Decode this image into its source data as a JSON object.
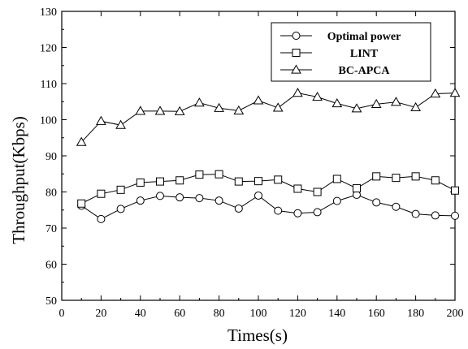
{
  "chart_data": {
    "type": "line",
    "xlabel": "Times(s)",
    "ylabel": "Throughput(Kbps)",
    "xlim": [
      0,
      200
    ],
    "ylim": [
      50,
      130
    ],
    "xticks": [
      0,
      20,
      40,
      60,
      80,
      100,
      120,
      140,
      160,
      180,
      200
    ],
    "yticks": [
      50,
      60,
      70,
      80,
      90,
      100,
      110,
      120,
      130
    ],
    "grid": false,
    "legend_position": "top-right",
    "x": [
      10,
      20,
      30,
      40,
      50,
      60,
      70,
      80,
      90,
      100,
      110,
      120,
      130,
      140,
      150,
      160,
      170,
      180,
      190,
      200
    ],
    "series": [
      {
        "name": "Optimal power",
        "marker": "circle",
        "values": [
          76.2,
          72.5,
          75.3,
          77.6,
          78.9,
          78.5,
          78.3,
          77.6,
          75.4,
          79.0,
          74.8,
          74.1,
          74.4,
          77.5,
          79.2,
          77.1,
          75.9,
          73.9,
          73.5,
          73.4
        ]
      },
      {
        "name": "LINT",
        "marker": "square",
        "values": [
          76.8,
          79.5,
          80.6,
          82.6,
          82.9,
          83.2,
          84.8,
          84.9,
          82.9,
          83.0,
          83.4,
          80.9,
          80.0,
          83.6,
          81.0,
          84.3,
          83.9,
          84.3,
          83.2,
          80.4
        ]
      },
      {
        "name": "BC-APCA",
        "marker": "triangle",
        "values": [
          93.8,
          99.6,
          98.5,
          102.4,
          102.4,
          102.3,
          104.7,
          103.2,
          102.5,
          105.3,
          103.3,
          107.4,
          106.3,
          104.5,
          103.1,
          104.3,
          104.9,
          103.4,
          107.2,
          107.4
        ]
      }
    ]
  }
}
